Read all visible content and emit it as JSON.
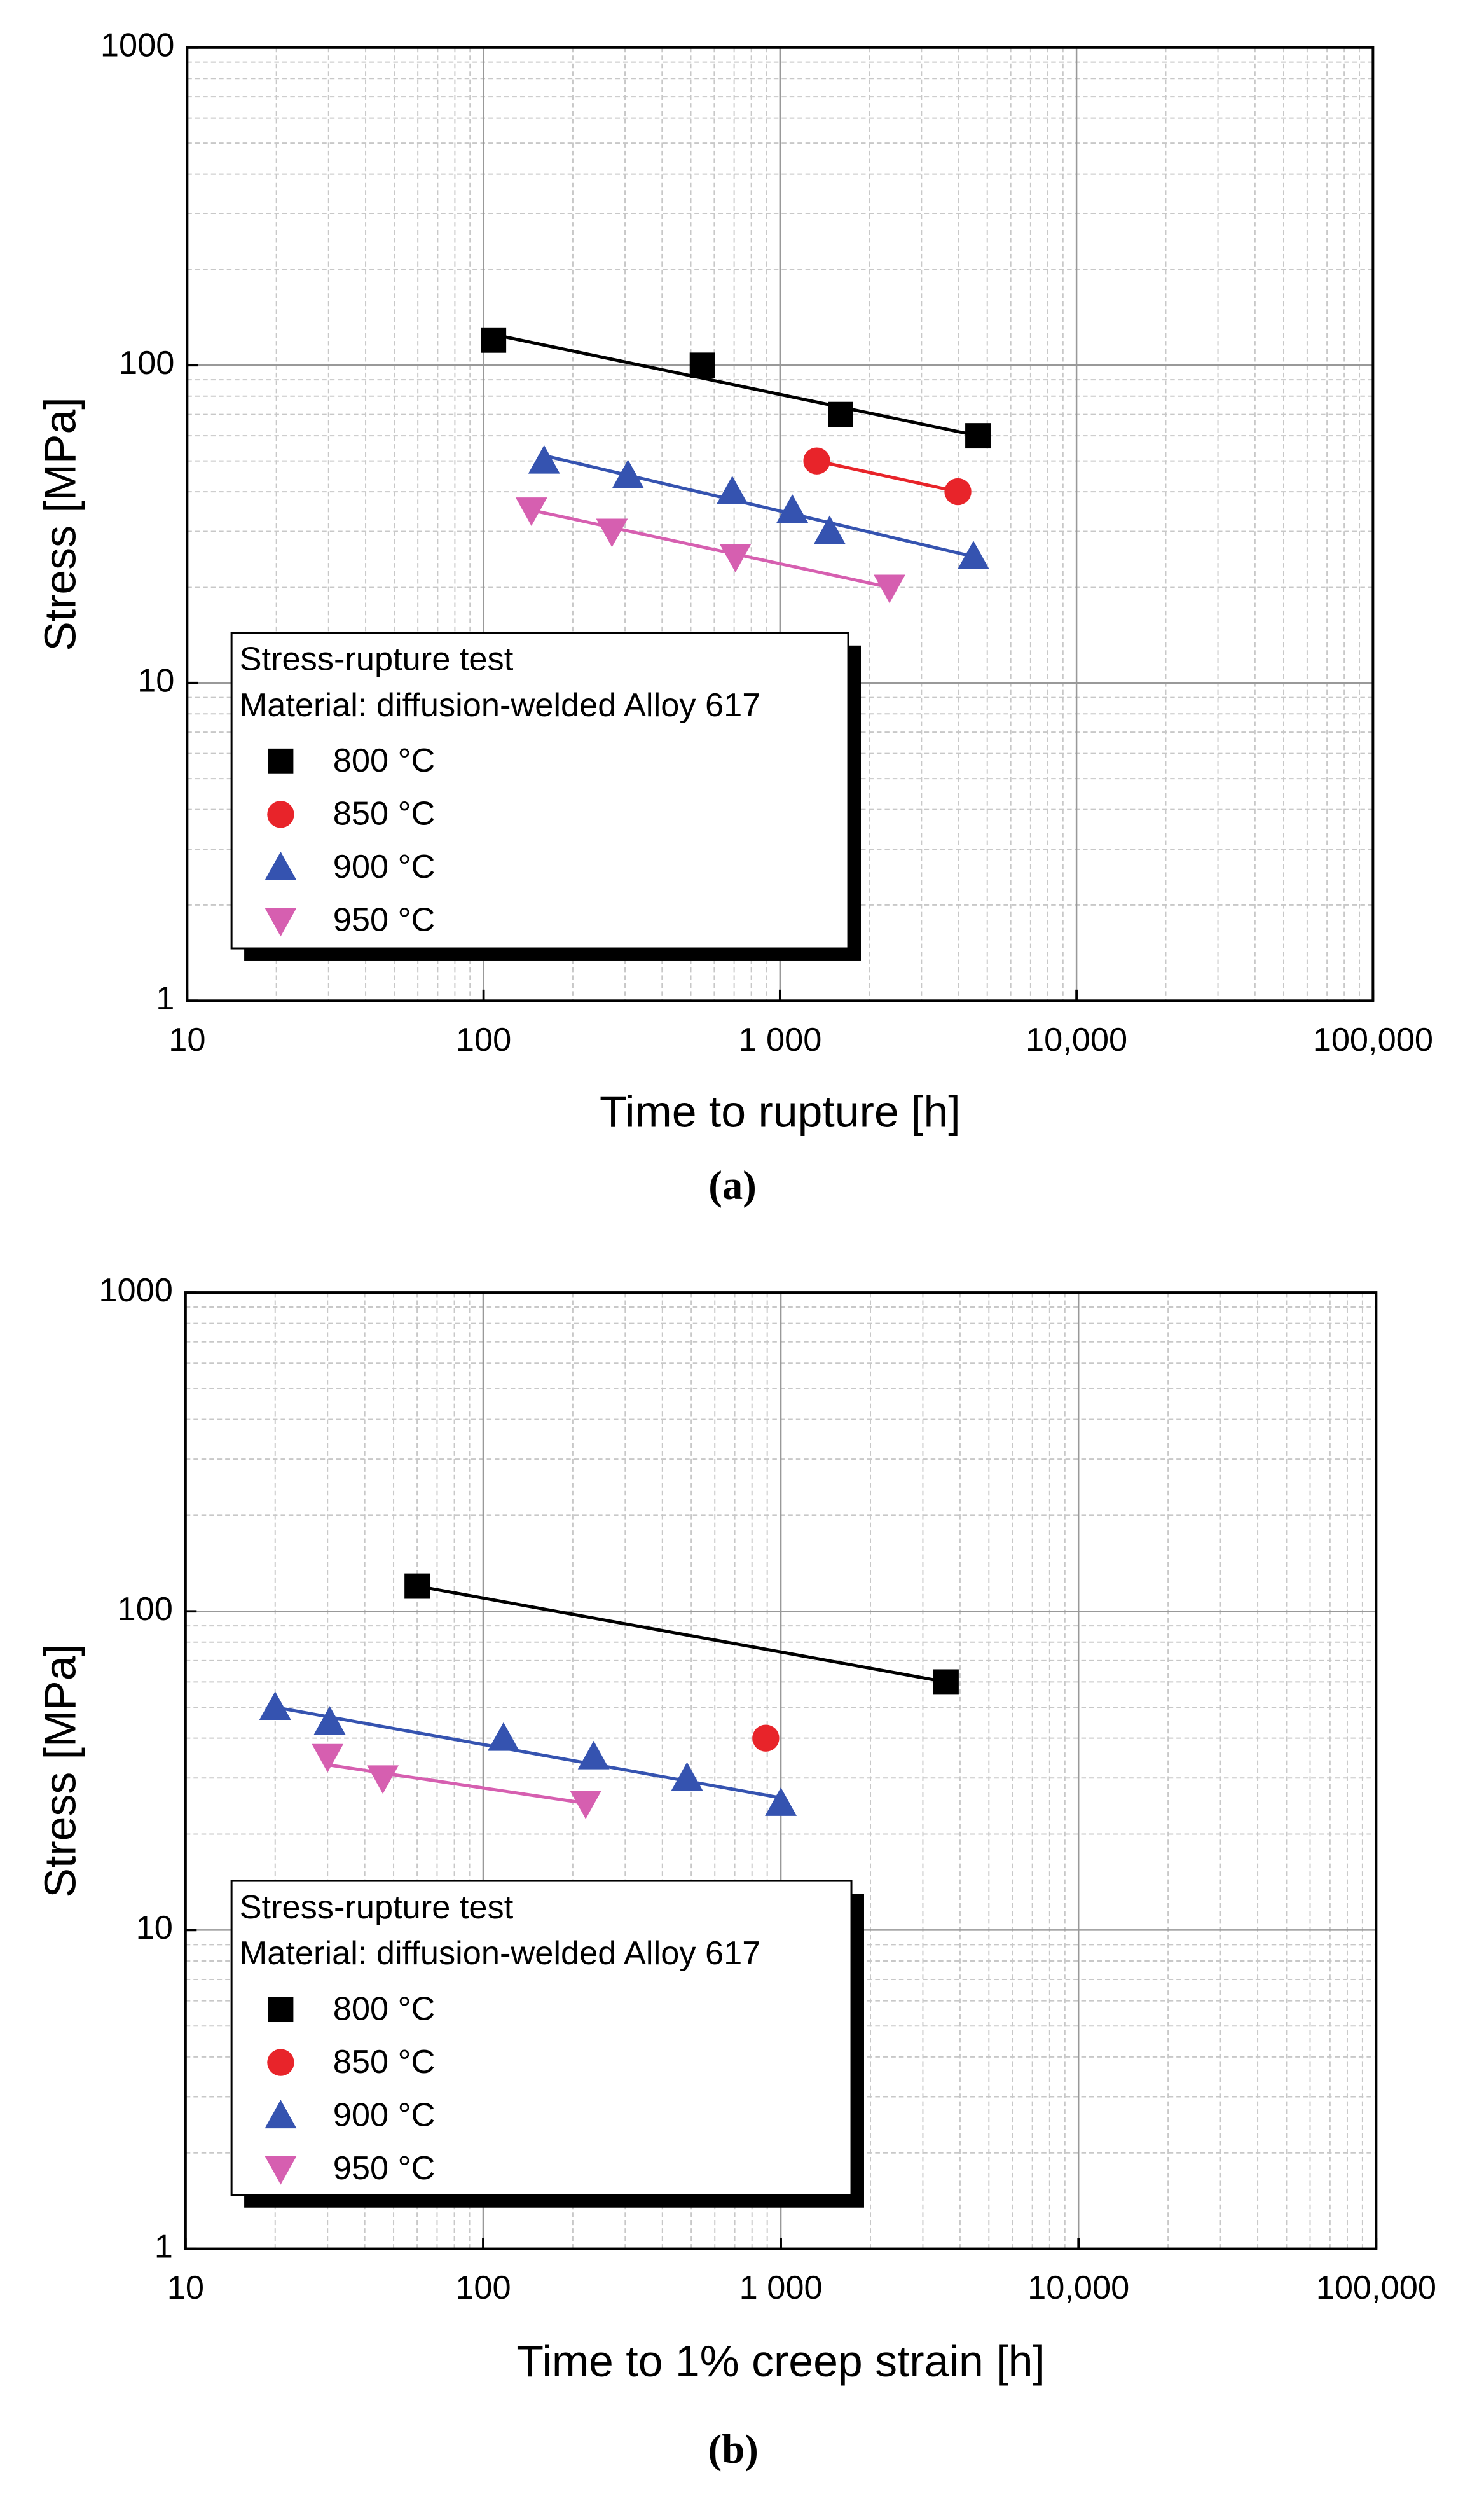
{
  "chart_data": [
    {
      "type": "scatter",
      "caption": "(a)",
      "xlabel": "Time to rupture [h]",
      "ylabel": "Stress [MPa]",
      "xscale": "log",
      "yscale": "log",
      "xlim": [
        10,
        100000
      ],
      "ylim": [
        1,
        1000
      ],
      "xticks": [
        10,
        100,
        {
          "value": 1000,
          "label": "1 000"
        },
        {
          "value": 10000,
          "label": "10,000"
        },
        {
          "value": 100000,
          "label": "100,000"
        }
      ],
      "yticks": [
        1,
        10,
        100,
        1000
      ],
      "grid": true,
      "minor_grid": true,
      "legend": "lower left",
      "legend_title": [
        "Stress-rupture test",
        "Material: diffusion-welded Alloy 617"
      ],
      "series": [
        {
          "name": "800 °C",
          "color": "#000000",
          "marker": "square",
          "x": [
            108,
            547,
            1600,
            4650
          ],
          "values": [
            120,
            100,
            70,
            60
          ],
          "fit": {
            "x": [
              108,
              4650
            ],
            "y": [
              125,
              60
            ]
          }
        },
        {
          "name": "850 °C",
          "color": "#e8242a",
          "marker": "circle",
          "x": [
            1330,
            3980
          ],
          "values": [
            50,
            40
          ],
          "fit": {
            "x": [
              1330,
              3980
            ],
            "y": [
              50,
              40
            ]
          }
        },
        {
          "name": "900 °C",
          "color": "#3553b0",
          "marker": "triangle-up",
          "x": [
            160,
            307,
            690,
            1100,
            1470,
            4490
          ],
          "values": [
            50,
            45,
            40,
            35,
            30,
            25
          ],
          "fit": {
            "x": [
              160,
              4490
            ],
            "y": [
              52,
              25
            ]
          }
        },
        {
          "name": "950 °C",
          "color": "#d65fb0",
          "marker": "triangle-down",
          "x": [
            145,
            271,
            707,
            2340
          ],
          "values": [
            35,
            30,
            25,
            20
          ],
          "fit": {
            "x": [
              145,
              2340
            ],
            "y": [
              35,
              20
            ]
          }
        }
      ]
    },
    {
      "type": "scatter",
      "caption": "(b)",
      "xlabel": "Time to 1% creep strain [h]",
      "ylabel": "Stress [MPa]",
      "xscale": "log",
      "yscale": "log",
      "xlim": [
        10,
        100000
      ],
      "ylim": [
        1,
        1000
      ],
      "xticks": [
        10,
        100,
        {
          "value": 1000,
          "label": "1 000"
        },
        {
          "value": 10000,
          "label": "10,000"
        },
        {
          "value": 100000,
          "label": "100,000"
        }
      ],
      "yticks": [
        1,
        10,
        100,
        1000
      ],
      "grid": true,
      "minor_grid": true,
      "legend": "lower left",
      "legend_title": [
        "Stress-rupture test",
        "Material: diffusion-welded Alloy 617"
      ],
      "series": [
        {
          "name": "800 °C",
          "color": "#000000",
          "marker": "square",
          "x": [
            60,
            3590
          ],
          "values": [
            120,
            60
          ],
          "fit": {
            "x": [
              60,
              3590
            ],
            "y": [
              120,
              60
            ]
          }
        },
        {
          "name": "850 °C",
          "color": "#e8242a",
          "marker": "circle",
          "x": [
            890
          ],
          "values": [
            40
          ]
        },
        {
          "name": "900 °C",
          "color": "#3553b0",
          "marker": "triangle-up",
          "x": [
            20,
            30.5,
            117,
            235,
            484,
            1000
          ],
          "values": [
            50,
            45,
            40,
            35,
            30,
            25
          ],
          "fit": {
            "x": [
              20,
              1000
            ],
            "y": [
              50,
              26
            ]
          }
        },
        {
          "name": "950 °C",
          "color": "#d65fb0",
          "marker": "triangle-down",
          "x": [
            30,
            46,
            221
          ],
          "values": [
            35,
            30,
            25
          ],
          "fit": {
            "x": [
              30,
              221
            ],
            "y": [
              33,
              25
            ]
          }
        }
      ]
    }
  ]
}
